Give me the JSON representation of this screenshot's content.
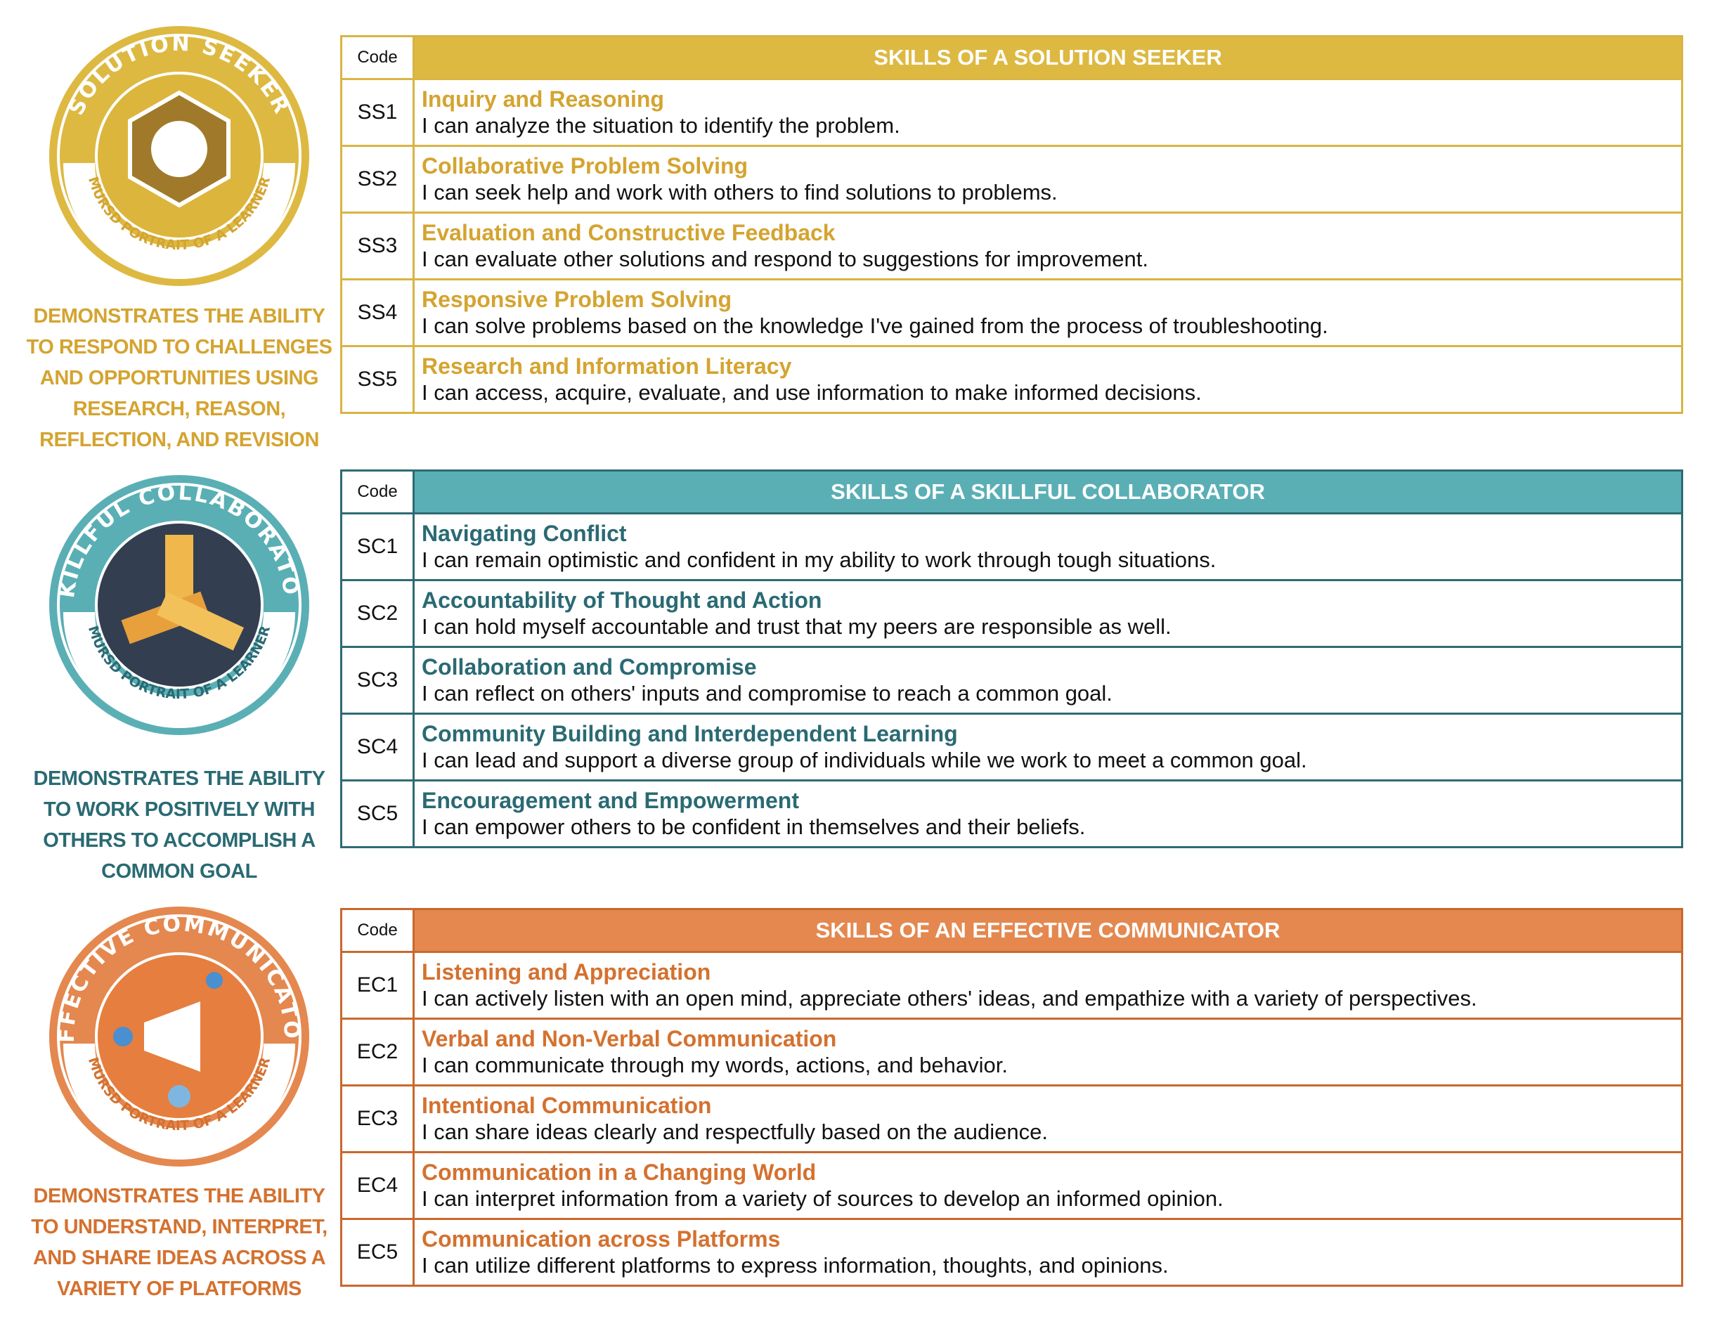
{
  "sections": [
    {
      "badge_title": "SOLUTION SEEKER",
      "badge_subtitle": "MURSD PORTRAIT OF A LEARNER",
      "description": "DEMONSTRATES THE ABILITY TO RESPOND TO CHALLENGES AND OPPORTUNITIES USING RESEARCH, REASON, REFLECTION, AND REVISION",
      "table": {
        "code_header": "Code",
        "title": "SKILLS OF A SOLUTION SEEKER",
        "rows": [
          {
            "code": "SS1",
            "skill": "Inquiry and Reasoning",
            "statement": "I can analyze the situation to identify the problem."
          },
          {
            "code": "SS2",
            "skill": "Collaborative Problem Solving",
            "statement": "I can seek help and work with others to find solutions to problems."
          },
          {
            "code": "SS3",
            "skill": "Evaluation and Constructive Feedback",
            "statement": "I can evaluate other solutions and respond to suggestions for improvement."
          },
          {
            "code": "SS4",
            "skill": "Responsive Problem Solving",
            "statement": "I can solve problems based on the knowledge I've gained from the process of troubleshooting."
          },
          {
            "code": "SS5",
            "skill": "Research and Information Literacy",
            "statement": "I can access, acquire, evaluate, and use information to make informed decisions."
          }
        ]
      }
    },
    {
      "badge_title": "SKILLFUL COLLABORATOR",
      "badge_subtitle": "MURSD PORTRAIT OF A LEARNER",
      "description": "DEMONSTRATES THE ABILITY TO WORK POSITIVELY WITH OTHERS TO ACCOMPLISH A COMMON GOAL",
      "table": {
        "code_header": "Code",
        "title": "SKILLS OF A SKILLFUL COLLABORATOR",
        "rows": [
          {
            "code": "SC1",
            "skill": "Navigating Conflict",
            "statement": "I can remain optimistic and confident in my ability to work through tough situations."
          },
          {
            "code": "SC2",
            "skill": "Accountability of Thought and Action",
            "statement": "I can hold myself accountable and trust that my peers are responsible as well."
          },
          {
            "code": "SC3",
            "skill": "Collaboration and Compromise",
            "statement": "I can reflect on others' inputs and compromise to reach a common goal."
          },
          {
            "code": "SC4",
            "skill": "Community Building and Interdependent Learning",
            "statement": "I can lead and support a diverse group of individuals while we work to meet a common goal."
          },
          {
            "code": "SC5",
            "skill": "Encouragement and Empowerment",
            "statement": "I can empower others to be confident in themselves and their beliefs."
          }
        ]
      }
    },
    {
      "badge_title": "EFFECTIVE COMMUNICATOR",
      "badge_subtitle": "MURSD PORTRAIT OF A LEARNER",
      "description": "DEMONSTRATES THE ABILITY TO UNDERSTAND, INTERPRET, AND SHARE IDEAS ACROSS A VARIETY OF PLATFORMS",
      "table": {
        "code_header": "Code",
        "title": "SKILLS OF AN EFFECTIVE COMMUNICATOR",
        "rows": [
          {
            "code": "EC1",
            "skill": "Listening and Appreciation",
            "statement": "I can actively listen with an open mind, appreciate others' ideas, and empathize with a variety of perspectives."
          },
          {
            "code": "EC2",
            "skill": "Verbal and Non-Verbal Communication",
            "statement": "I can communicate through my words, actions, and behavior."
          },
          {
            "code": "EC3",
            "skill": "Intentional Communication",
            "statement": "I can share ideas clearly and respectfully based on the audience."
          },
          {
            "code": "EC4",
            "skill": "Communication in a Changing World",
            "statement": "I can interpret information from a variety of sources to develop an informed opinion."
          },
          {
            "code": "EC5",
            "skill": "Communication across Platforms",
            "statement": "I can utilize different platforms to express information, thoughts, and opinions."
          }
        ]
      }
    }
  ]
}
